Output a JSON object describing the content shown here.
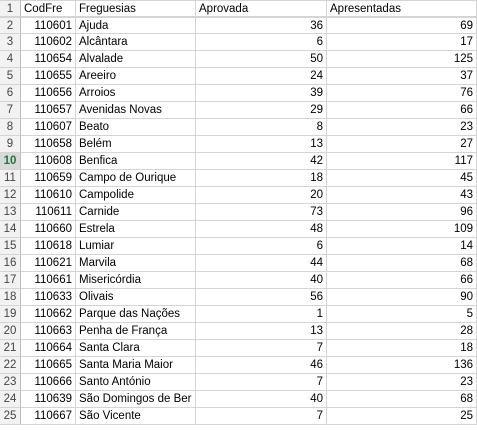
{
  "sheet": {
    "header_row": {
      "row_num": "1",
      "a": "CodFre",
      "b": "Freguesias",
      "c": "Aprovada",
      "d": "Apresentadas"
    },
    "active_row": "10",
    "rows": [
      {
        "row_num": "2",
        "cod": "110601",
        "freg": "Ajuda",
        "aprov": "36",
        "apres": "69"
      },
      {
        "row_num": "3",
        "cod": "110602",
        "freg": "Alcântara",
        "aprov": "6",
        "apres": "17"
      },
      {
        "row_num": "4",
        "cod": "110654",
        "freg": "Alvalade",
        "aprov": "50",
        "apres": "125"
      },
      {
        "row_num": "5",
        "cod": "110655",
        "freg": "Areeiro",
        "aprov": "24",
        "apres": "37"
      },
      {
        "row_num": "6",
        "cod": "110656",
        "freg": "Arroios",
        "aprov": "39",
        "apres": "76"
      },
      {
        "row_num": "7",
        "cod": "110657",
        "freg": "Avenidas Novas",
        "aprov": "29",
        "apres": "66"
      },
      {
        "row_num": "8",
        "cod": "110607",
        "freg": "Beato",
        "aprov": "8",
        "apres": "23"
      },
      {
        "row_num": "9",
        "cod": "110658",
        "freg": "Belém",
        "aprov": "13",
        "apres": "27"
      },
      {
        "row_num": "10",
        "cod": "110608",
        "freg": "Benfica",
        "aprov": "42",
        "apres": "117"
      },
      {
        "row_num": "11",
        "cod": "110659",
        "freg": "Campo de Ourique",
        "aprov": "18",
        "apres": "45"
      },
      {
        "row_num": "12",
        "cod": "110610",
        "freg": "Campolide",
        "aprov": "20",
        "apres": "43"
      },
      {
        "row_num": "13",
        "cod": "110611",
        "freg": "Carnide",
        "aprov": "73",
        "apres": "96"
      },
      {
        "row_num": "14",
        "cod": "110660",
        "freg": "Estrela",
        "aprov": "48",
        "apres": "109"
      },
      {
        "row_num": "15",
        "cod": "110618",
        "freg": "Lumiar",
        "aprov": "6",
        "apres": "14"
      },
      {
        "row_num": "16",
        "cod": "110621",
        "freg": "Marvila",
        "aprov": "44",
        "apres": "68"
      },
      {
        "row_num": "17",
        "cod": "110661",
        "freg": "Misericórdia",
        "aprov": "40",
        "apres": "66"
      },
      {
        "row_num": "18",
        "cod": "110633",
        "freg": "Olivais",
        "aprov": "56",
        "apres": "90"
      },
      {
        "row_num": "19",
        "cod": "110662",
        "freg": "Parque das Nações",
        "aprov": "1",
        "apres": "5"
      },
      {
        "row_num": "20",
        "cod": "110663",
        "freg": "Penha de França",
        "aprov": "13",
        "apres": "28"
      },
      {
        "row_num": "21",
        "cod": "110664",
        "freg": "Santa Clara",
        "aprov": "7",
        "apres": "18"
      },
      {
        "row_num": "22",
        "cod": "110665",
        "freg": "Santa Maria Maior",
        "aprov": "46",
        "apres": "136"
      },
      {
        "row_num": "23",
        "cod": "110666",
        "freg": "Santo António",
        "aprov": "7",
        "apres": "23"
      },
      {
        "row_num": "24",
        "cod": "110639",
        "freg": "São Domingos de Ber",
        "aprov": "40",
        "apres": "68"
      },
      {
        "row_num": "25",
        "cod": "110667",
        "freg": "São Vicente",
        "aprov": "7",
        "apres": "25"
      }
    ]
  }
}
